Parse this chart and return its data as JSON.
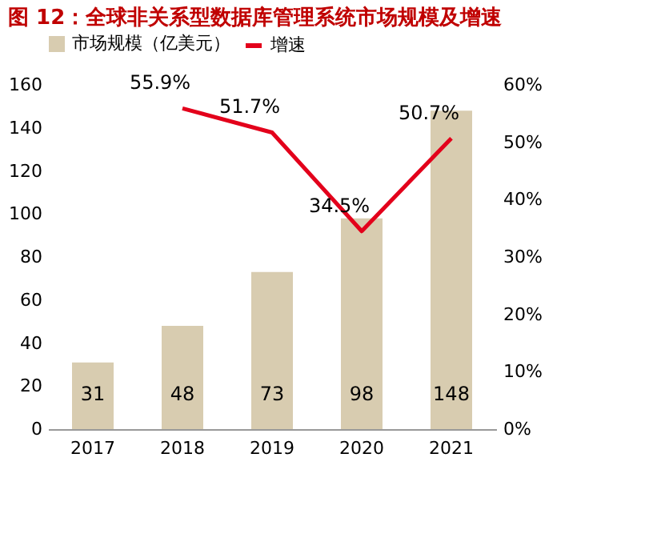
{
  "chart_data": {
    "type": "bar",
    "title": "图 12：全球非关系型数据库管理系统市场规模及增速",
    "categories": [
      "2017",
      "2018",
      "2019",
      "2020",
      "2021"
    ],
    "series": [
      {
        "name": "市场规模（亿美元）",
        "color": "#d8ccb0",
        "values": [
          31,
          48,
          73,
          98,
          148
        ],
        "value_labels": [
          "31",
          "48",
          "73",
          "98",
          "148"
        ]
      },
      {
        "name": "增速",
        "type": "line",
        "axis": "y2",
        "color": "#e3001b",
        "values": [
          null,
          55.9,
          51.7,
          34.5,
          50.7
        ],
        "value_labels": [
          null,
          "55.9%",
          "51.7%",
          "34.5%",
          "50.7%"
        ]
      }
    ],
    "ylim": [
      0,
      160
    ],
    "yticks": [
      0,
      20,
      40,
      60,
      80,
      100,
      120,
      140,
      160
    ],
    "y2lim": [
      0,
      60
    ],
    "y2ticks": [
      {
        "value": 0,
        "label": "0%"
      },
      {
        "value": 10,
        "label": "10%"
      },
      {
        "value": 20,
        "label": "20%"
      },
      {
        "value": 30,
        "label": "30%"
      },
      {
        "value": 40,
        "label": "40%"
      },
      {
        "value": 50,
        "label": "50%"
      },
      {
        "value": 60,
        "label": "60%"
      }
    ],
    "legend": "top",
    "grid": false
  }
}
